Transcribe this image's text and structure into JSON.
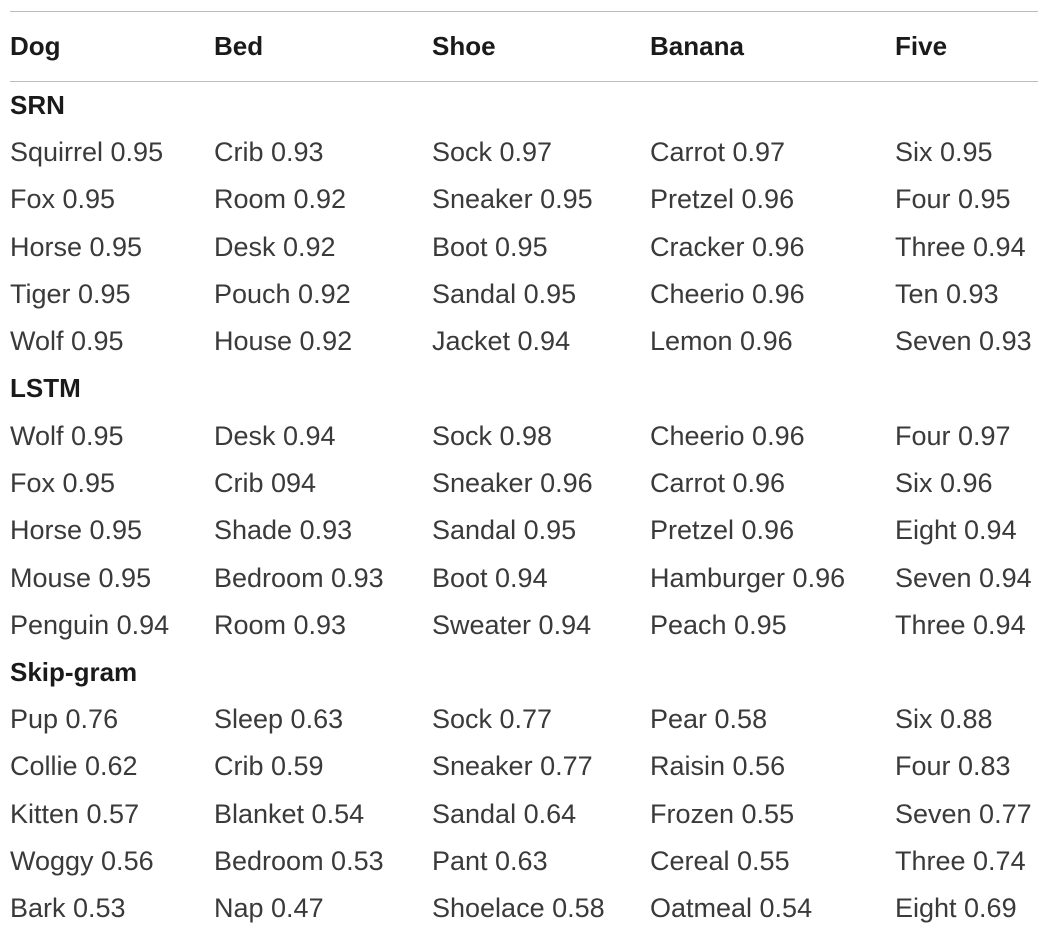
{
  "columns": [
    "Dog",
    "Bed",
    "Shoe",
    "Banana",
    "Five"
  ],
  "groups": [
    {
      "name": "SRN",
      "rows": [
        [
          "Squirrel 0.95",
          "Crib 0.93",
          "Sock 0.97",
          "Carrot 0.97",
          "Six 0.95"
        ],
        [
          "Fox 0.95",
          "Room 0.92",
          "Sneaker 0.95",
          "Pretzel 0.96",
          "Four 0.95"
        ],
        [
          "Horse 0.95",
          "Desk 0.92",
          "Boot 0.95",
          "Cracker 0.96",
          "Three 0.94"
        ],
        [
          "Tiger 0.95",
          "Pouch 0.92",
          "Sandal 0.95",
          "Cheerio 0.96",
          "Ten 0.93"
        ],
        [
          "Wolf 0.95",
          "House 0.92",
          "Jacket 0.94",
          "Lemon 0.96",
          "Seven 0.93"
        ]
      ]
    },
    {
      "name": "LSTM",
      "rows": [
        [
          "Wolf 0.95",
          "Desk 0.94",
          "Sock 0.98",
          "Cheerio 0.96",
          "Four 0.97"
        ],
        [
          "Fox 0.95",
          "Crib 094",
          "Sneaker 0.96",
          "Carrot 0.96",
          "Six 0.96"
        ],
        [
          "Horse 0.95",
          "Shade 0.93",
          "Sandal 0.95",
          "Pretzel 0.96",
          "Eight 0.94"
        ],
        [
          "Mouse 0.95",
          "Bedroom 0.93",
          "Boot 0.94",
          "Hamburger 0.96",
          "Seven 0.94"
        ],
        [
          "Penguin 0.94",
          "Room 0.93",
          "Sweater 0.94",
          "Peach 0.95",
          "Three 0.94"
        ]
      ]
    },
    {
      "name": "Skip-gram",
      "rows": [
        [
          "Pup 0.76",
          "Sleep 0.63",
          "Sock 0.77",
          "Pear 0.58",
          "Six 0.88"
        ],
        [
          "Collie 0.62",
          "Crib 0.59",
          "Sneaker 0.77",
          "Raisin 0.56",
          "Four 0.83"
        ],
        [
          "Kitten 0.57",
          "Blanket 0.54",
          "Sandal 0.64",
          "Frozen 0.55",
          "Seven 0.77"
        ],
        [
          "Woggy 0.56",
          "Bedroom 0.53",
          "Pant 0.63",
          "Cereal 0.55",
          "Three 0.74"
        ],
        [
          "Bark 0.53",
          "Nap 0.47",
          "Shoelace 0.58",
          "Oatmeal 0.54",
          "Eight 0.69"
        ]
      ]
    }
  ]
}
